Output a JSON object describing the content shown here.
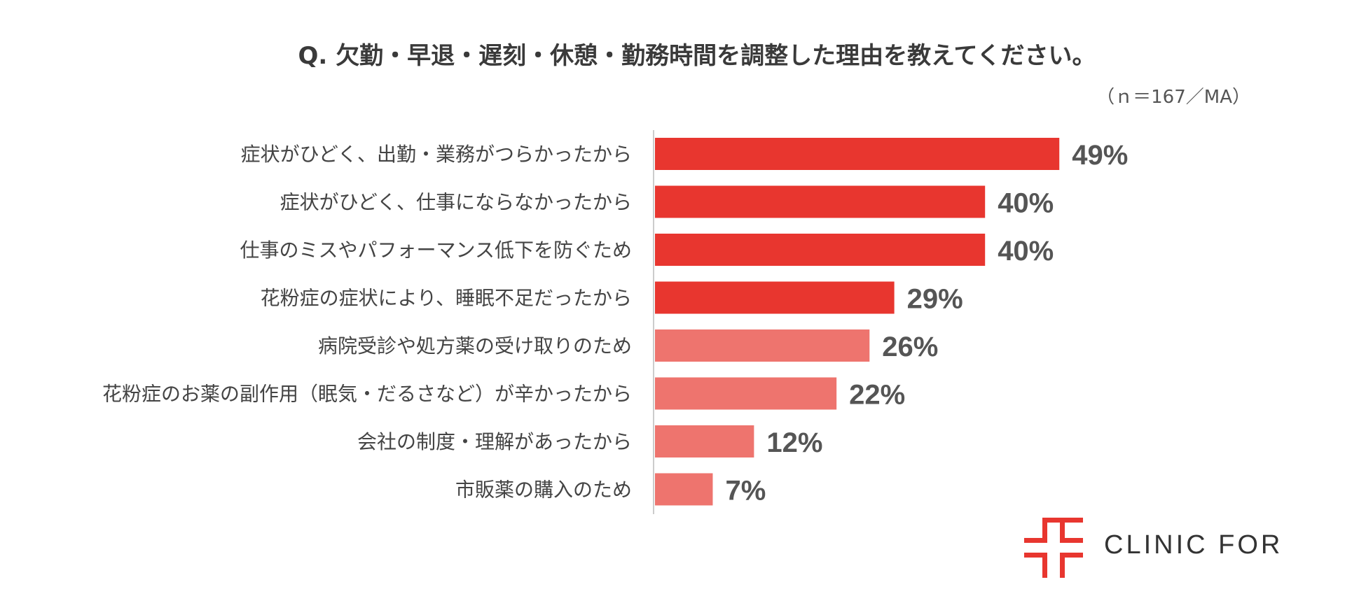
{
  "chart_data": {
    "type": "bar",
    "orientation": "horizontal",
    "title": "Q. 欠勤・早退・遅刻・休憩・勤務時間を調整した理由を教えてください。",
    "note": "（ｎ＝167／MA）",
    "categories": [
      "症状がひどく、出勤・業務がつらかったから",
      "症状がひどく、仕事にならなかったから",
      "仕事のミスやパフォーマンス低下を防ぐため",
      "花粉症の症状により、睡眠不足だったから",
      "病院受診や処方薬の受け取りのため",
      "花粉症のお薬の副作用（眠気・だるさなど）が辛かったから",
      "会社の制度・理解があったから",
      "市販薬の購入のため"
    ],
    "values": [
      49,
      40,
      40,
      29,
      26,
      22,
      12,
      7
    ],
    "value_labels": [
      "49%",
      "40%",
      "40%",
      "29%",
      "26%",
      "22%",
      "12%",
      "7%"
    ],
    "unit": "%",
    "colors": {
      "highlight": "#E8362F",
      "normal": "#EE746E",
      "axis": "#CCCCCC"
    },
    "highlight_count": 4,
    "grid": false
  },
  "brand": {
    "name": "CLINIC FOR",
    "color": "#E8362F"
  }
}
